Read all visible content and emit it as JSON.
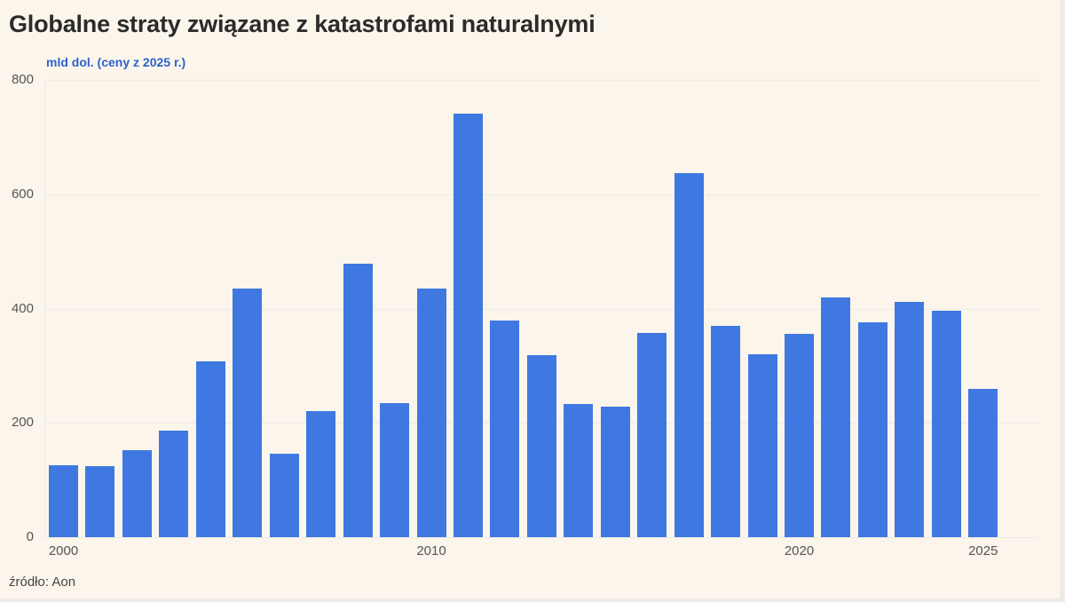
{
  "header": {
    "title": "Globalne straty związane z katastrofami naturalnymi",
    "unit_label": "mld dol. (ceny z 2025 r.)"
  },
  "footer": {
    "source": "źródło: Aon"
  },
  "colors": {
    "bar": "#3f78e0",
    "background": "#fbf5eb",
    "unit_label": "#2f62cc",
    "title": "#2b2b2b"
  },
  "y_ticks": [
    "0",
    "200",
    "400",
    "600",
    "800"
  ],
  "x_ticks": [
    "2000",
    "2010",
    "2020",
    "2025"
  ],
  "chart_data": {
    "type": "bar",
    "title": "Globalne straty związane z katastrofami naturalnymi",
    "subtitle": "mld dol. (ceny z 2025 r.)",
    "xlabel": "",
    "ylabel": "mld dol. (ceny z 2025 r.)",
    "ylim": [
      0,
      800
    ],
    "yticks": [
      0,
      200,
      400,
      600,
      800
    ],
    "xticks": [
      "2000",
      "2010",
      "2020",
      "2025"
    ],
    "grid": true,
    "legend": null,
    "source": "źródło: Aon",
    "categories": [
      "2000",
      "2001",
      "2002",
      "2003",
      "2004",
      "2005",
      "2006",
      "2007",
      "2008",
      "2009",
      "2010",
      "2011",
      "2012",
      "2013",
      "2014",
      "2015",
      "2016",
      "2017",
      "2018",
      "2019",
      "2020",
      "2021",
      "2022",
      "2023",
      "2024",
      "2025"
    ],
    "values": [
      126,
      124,
      152,
      186,
      307,
      435,
      146,
      220,
      478,
      234,
      435,
      741,
      379,
      318,
      233,
      228,
      357,
      637,
      369,
      320,
      356,
      419,
      376,
      411,
      396,
      259
    ]
  }
}
